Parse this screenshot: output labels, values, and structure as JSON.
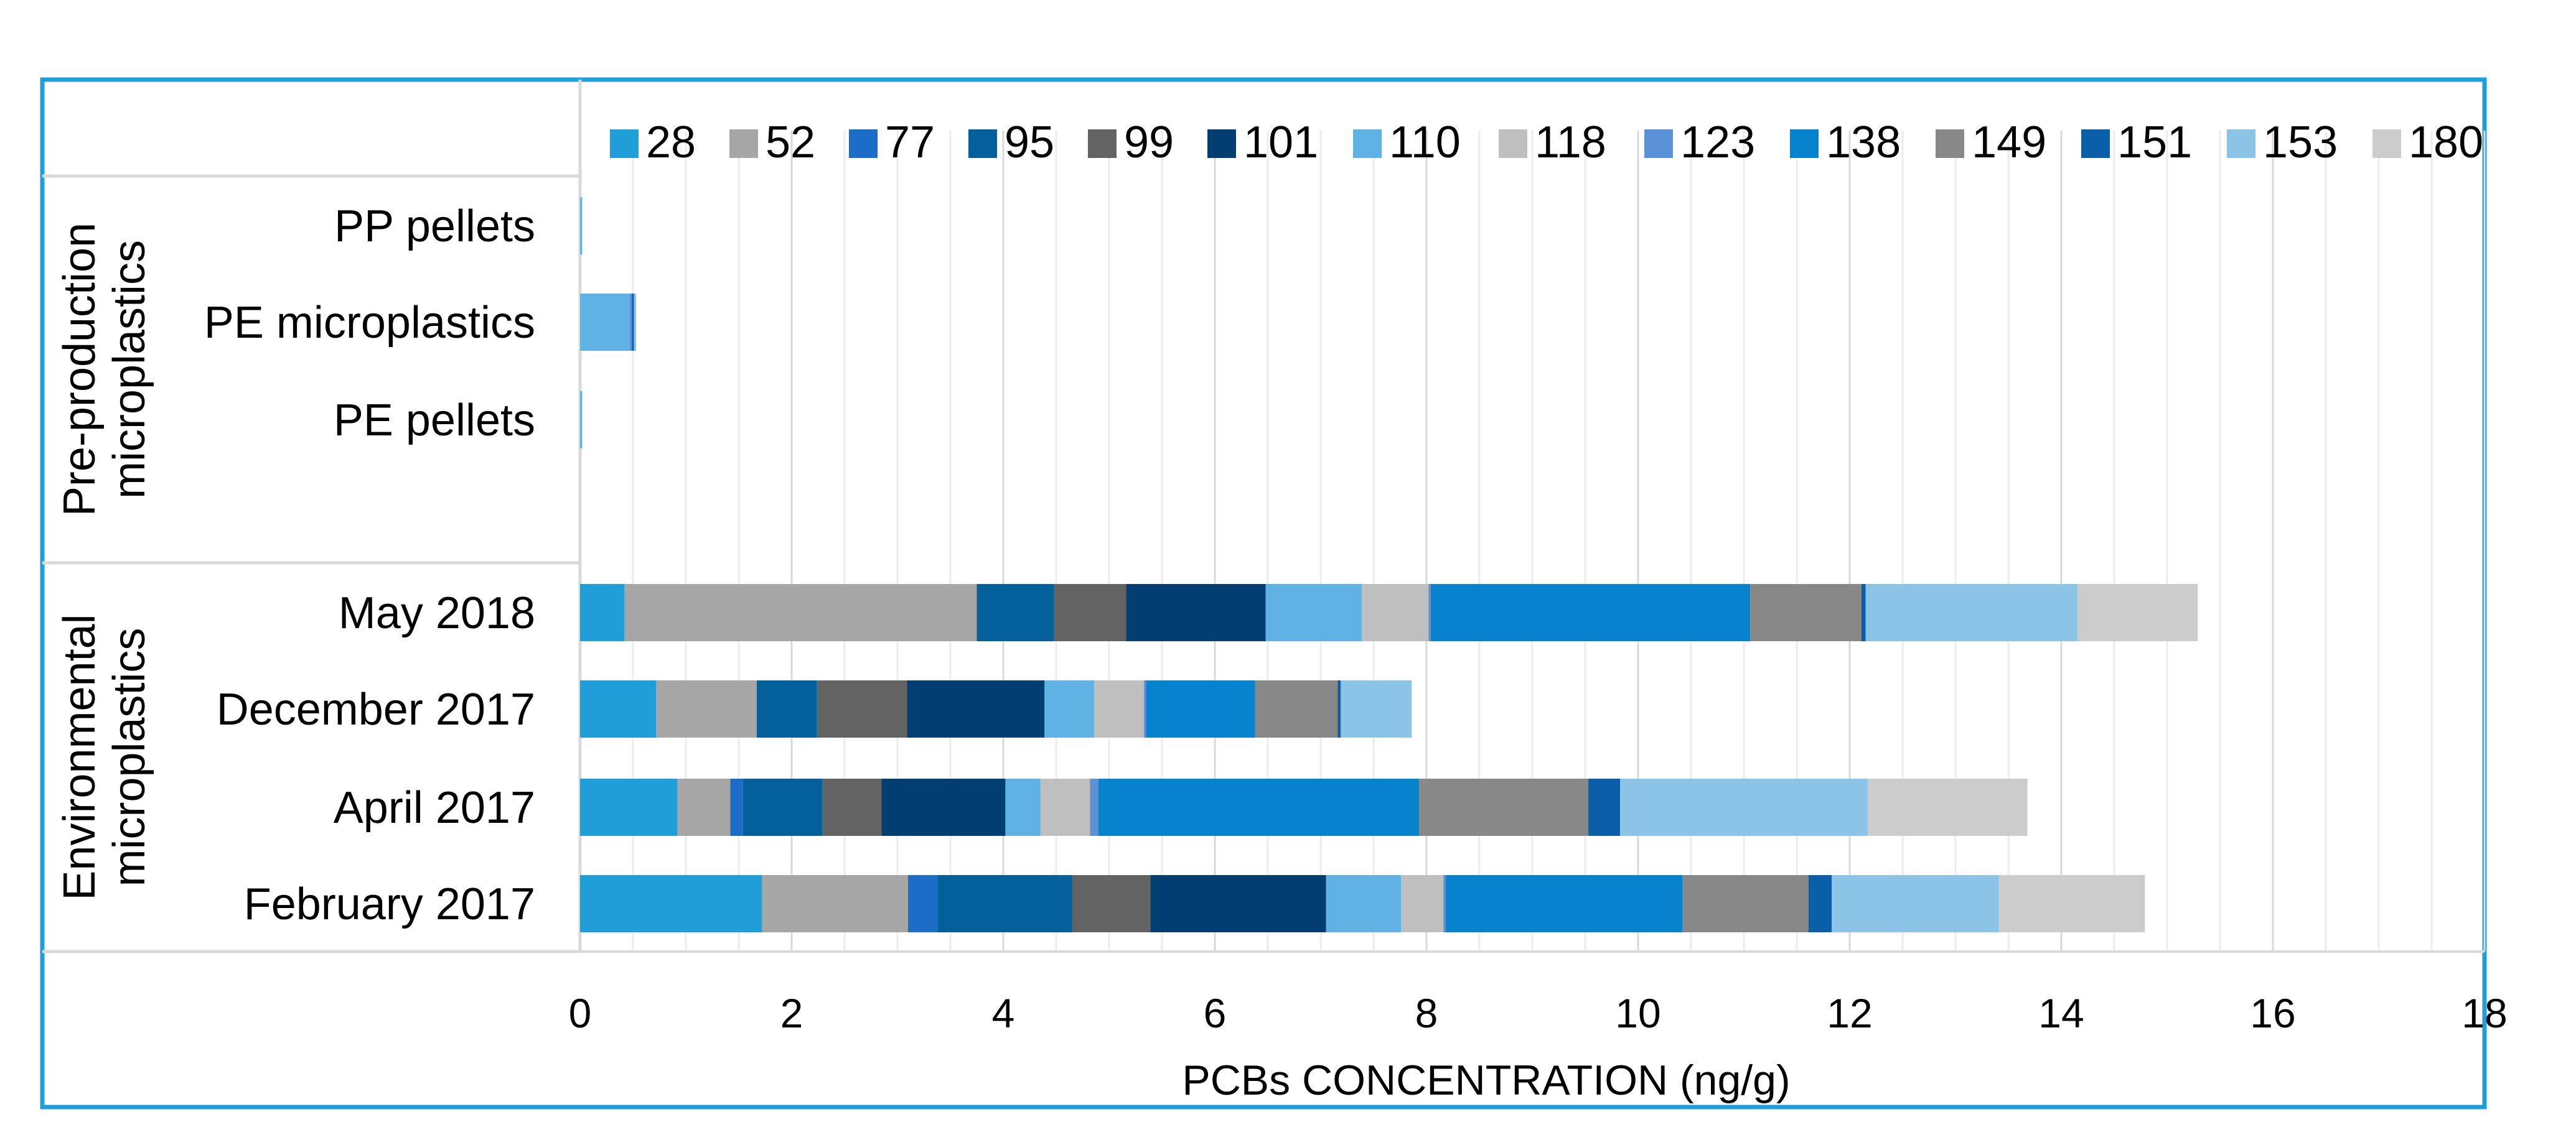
{
  "chart_data": {
    "type": "bar",
    "orientation": "horizontal",
    "stacked": true,
    "title": "",
    "xlabel": "PCBs CONCENTRATION (ng/g)",
    "ylabel": "",
    "xlim": [
      0,
      18
    ],
    "xticks": [
      "0",
      "2",
      "4",
      "6",
      "8",
      "10",
      "12",
      "14",
      "16",
      "18"
    ],
    "grid": true,
    "legend_position": "top",
    "groups": [
      {
        "label": "Pre-production microplastics",
        "label_lines": [
          "Pre-production",
          "microplastics"
        ],
        "categories": [
          "PP pellets",
          "PE microplastics",
          "PE pellets"
        ]
      },
      {
        "label": "Environmental microplastics",
        "label_lines": [
          "Environmental",
          "microplastics"
        ],
        "categories": [
          "May 2018",
          "December 2017",
          "April 2017",
          "February 2017"
        ]
      }
    ],
    "categories": [
      "PP pellets",
      "PE microplastics",
      "PE pellets",
      "May 2018",
      "December 2017",
      "April 2017",
      "February 2017"
    ],
    "series": [
      {
        "name": "28",
        "color": "#1F9ED8",
        "values": [
          0,
          0,
          0,
          0.42,
          0.72,
          0.92,
          1.72
        ]
      },
      {
        "name": "52",
        "color": "#A6A6A6",
        "values": [
          0,
          0,
          0,
          3.33,
          0.95,
          0.5,
          1.38
        ]
      },
      {
        "name": "77",
        "color": "#1C6DC8",
        "values": [
          0,
          0,
          0,
          0,
          0,
          0.12,
          0.28
        ]
      },
      {
        "name": "95",
        "color": "#04609A",
        "values": [
          0,
          0,
          0,
          0.73,
          0.57,
          0.75,
          1.27
        ]
      },
      {
        "name": "99",
        "color": "#636363",
        "values": [
          0,
          0,
          0,
          0.68,
          0.85,
          0.56,
          0.74
        ]
      },
      {
        "name": "101",
        "color": "#033E73",
        "values": [
          0,
          0,
          0,
          1.32,
          1.3,
          1.17,
          1.66
        ]
      },
      {
        "name": "110",
        "color": "#5FB2E3",
        "values": [
          0.02,
          0.47,
          0.02,
          0.91,
          0.47,
          0.33,
          0.71
        ]
      },
      {
        "name": "118",
        "color": "#BFBFBF",
        "values": [
          0,
          0,
          0,
          0.63,
          0.47,
          0.47,
          0.4
        ]
      },
      {
        "name": "123",
        "color": "#5B91D6",
        "values": [
          0,
          0.02,
          0,
          0.02,
          0.02,
          0.08,
          0.02
        ]
      },
      {
        "name": "138",
        "color": "#0683CC",
        "values": [
          0,
          0,
          0,
          3.02,
          1.03,
          3.03,
          2.24
        ]
      },
      {
        "name": "149",
        "color": "#888888",
        "values": [
          0,
          0,
          0,
          1.05,
          0.78,
          1.6,
          1.19
        ]
      },
      {
        "name": "151",
        "color": "#0B5EA8",
        "values": [
          0,
          0.02,
          0,
          0.04,
          0.03,
          0.3,
          0.22
        ]
      },
      {
        "name": "153",
        "color": "#8CC4E8",
        "values": [
          0,
          0.02,
          0,
          2.0,
          0.67,
          2.34,
          1.58
        ]
      },
      {
        "name": "180",
        "color": "#CCCCCC",
        "values": [
          0,
          0,
          0,
          1.14,
          0,
          1.51,
          1.38
        ]
      }
    ]
  }
}
